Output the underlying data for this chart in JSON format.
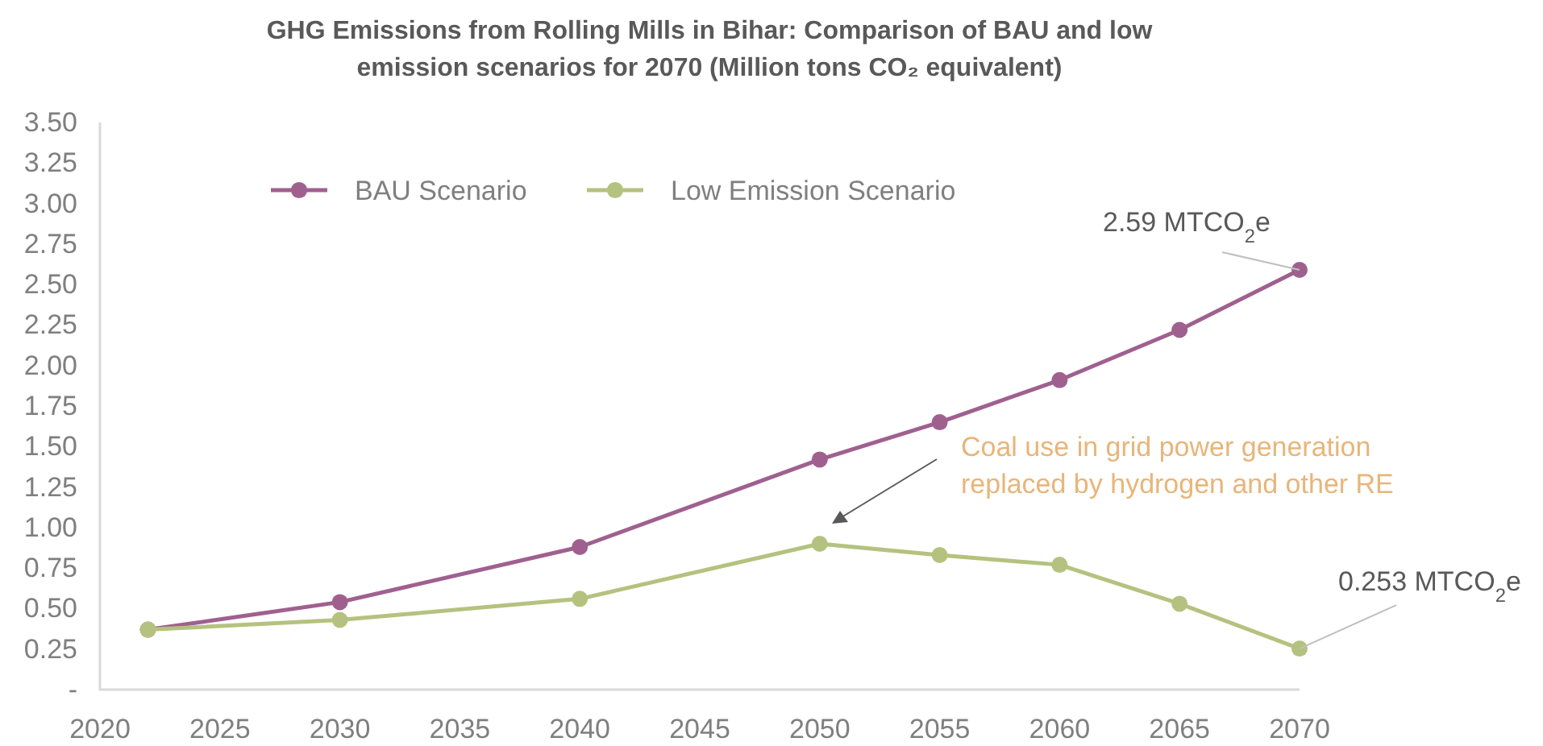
{
  "chart_data": {
    "type": "line",
    "title": "GHG Emissions from Rolling Mills in Bihar: Comparison of BAU and low emission scenarios for 2070 (Million tons CO₂ equivalent)",
    "x": [
      2022,
      2030,
      2040,
      2050,
      2055,
      2060,
      2065,
      2070
    ],
    "series": [
      {
        "name": "BAU Scenario",
        "color": "#a0608f",
        "values": [
          0.37,
          0.54,
          0.88,
          1.42,
          1.65,
          1.91,
          2.22,
          2.59
        ]
      },
      {
        "name": "Low Emission Scenario",
        "color": "#b5c27f",
        "values": [
          0.37,
          0.43,
          0.56,
          0.9,
          0.83,
          0.77,
          0.53,
          0.253
        ]
      }
    ],
    "xlim": [
      2020,
      2070
    ],
    "xticks": [
      2020,
      2025,
      2030,
      2035,
      2040,
      2045,
      2050,
      2055,
      2060,
      2065,
      2070
    ],
    "ylim": [
      0,
      3.5
    ],
    "yticks": [
      {
        "value": 0,
        "label": "-"
      },
      {
        "value": 0.25,
        "label": "0.25"
      },
      {
        "value": 0.5,
        "label": "0.50"
      },
      {
        "value": 0.75,
        "label": "0.75"
      },
      {
        "value": 1,
        "label": "1.00"
      },
      {
        "value": 1.25,
        "label": "1.25"
      },
      {
        "value": 1.5,
        "label": "1.50"
      },
      {
        "value": 1.75,
        "label": "1.75"
      },
      {
        "value": 2,
        "label": "2.00"
      },
      {
        "value": 2.25,
        "label": "2.25"
      },
      {
        "value": 2.5,
        "label": "2.50"
      },
      {
        "value": 2.75,
        "label": "2.75"
      },
      {
        "value": 3,
        "label": "3.00"
      },
      {
        "value": 3.25,
        "label": "3.25"
      },
      {
        "value": 3.5,
        "label": "3.50"
      }
    ],
    "annotations": [
      {
        "text": "2.59 MTCO$_{2}$e",
        "x": 2070,
        "y": 2.59
      },
      {
        "text": "0.253 MTCO$_{2}$e",
        "x": 2070,
        "y": 0.253
      },
      "Coal use in grid power generation replaced by hydrogen and other RE"
    ],
    "grid": false,
    "legend": "top",
    "marker": "circle",
    "line_style": "solid"
  }
}
